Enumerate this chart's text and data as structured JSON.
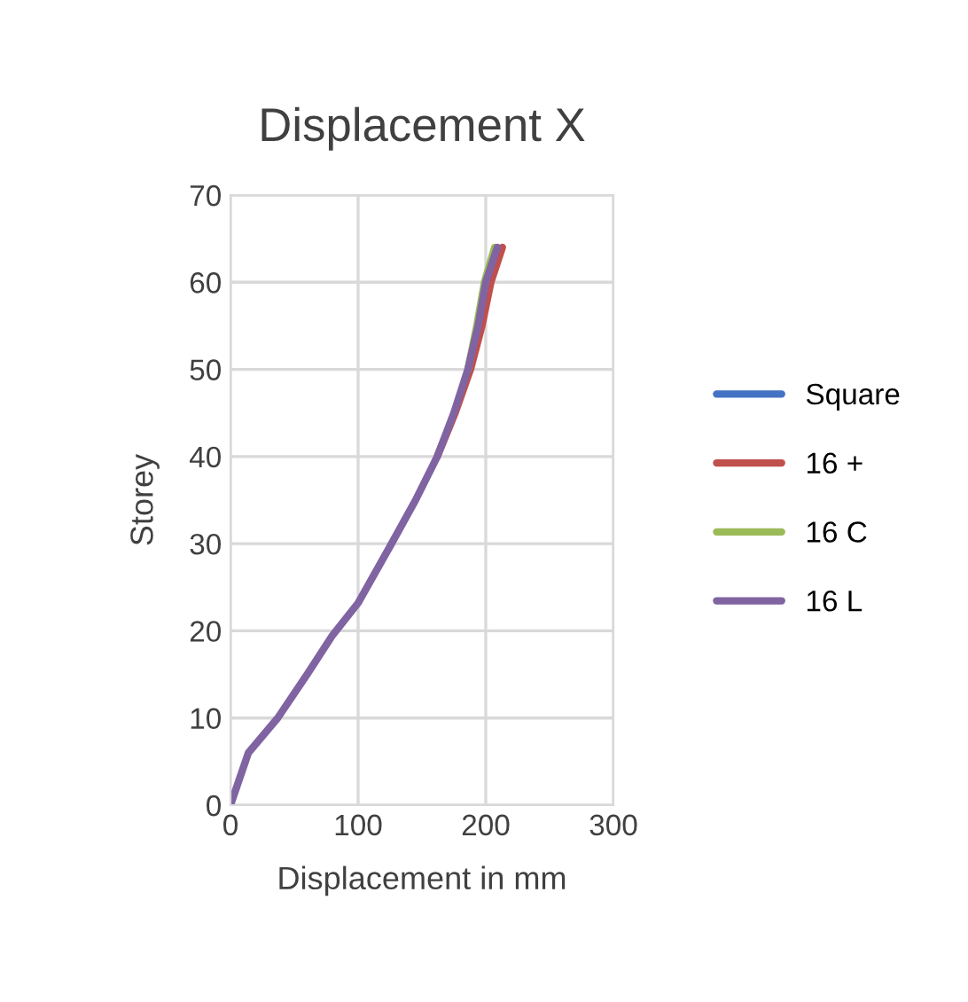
{
  "chart_data": {
    "type": "line",
    "title": "Displacement X",
    "xlabel": "Displacement in mm",
    "ylabel": "Storey",
    "xlim": [
      0,
      300
    ],
    "xticks": [
      0,
      100,
      200,
      300
    ],
    "ylim": [
      0,
      70
    ],
    "yticks": [
      0,
      10,
      20,
      30,
      40,
      50,
      60,
      70
    ],
    "grid": true,
    "legend": "right",
    "marker": "none",
    "line_style": "solid",
    "series": [
      {
        "name": "Square",
        "color": "#4472c4"
      },
      {
        "name": "16 +",
        "color": "#c0504d",
        "x": [
          162,
          176,
          188,
          197,
          204,
          213
        ],
        "values": [
          40,
          45,
          50,
          55,
          60,
          64
        ]
      },
      {
        "name": "16 C",
        "color": "#9bbb59",
        "x": [
          186,
          193,
          199,
          207
        ],
        "values": [
          50,
          55,
          60,
          64
        ]
      },
      {
        "name": "16 L",
        "color": "#8064a2",
        "x": [
          0,
          14,
          37,
          60,
          80,
          100,
          125,
          145,
          162,
          175,
          186,
          194,
          200,
          209
        ],
        "values": [
          0,
          6,
          10,
          15,
          19.5,
          23.2,
          29.7,
          35,
          40,
          45,
          50,
          55,
          60,
          64
        ]
      }
    ]
  }
}
